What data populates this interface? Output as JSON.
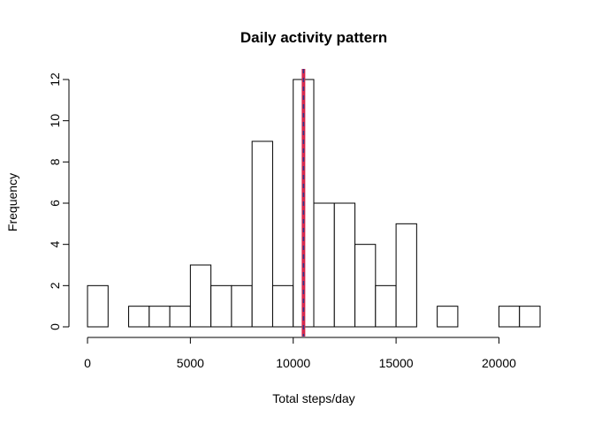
{
  "chart_data": {
    "type": "bar",
    "title": "Daily activity pattern",
    "xlabel": "Total steps/day",
    "ylabel": "Frequency",
    "bin_width": 1000,
    "bins": [
      {
        "start": 0,
        "end": 1000,
        "count": 2
      },
      {
        "start": 1000,
        "end": 2000,
        "count": 0
      },
      {
        "start": 2000,
        "end": 3000,
        "count": 1
      },
      {
        "start": 3000,
        "end": 4000,
        "count": 1
      },
      {
        "start": 4000,
        "end": 5000,
        "count": 1
      },
      {
        "start": 5000,
        "end": 6000,
        "count": 3
      },
      {
        "start": 6000,
        "end": 7000,
        "count": 2
      },
      {
        "start": 7000,
        "end": 8000,
        "count": 2
      },
      {
        "start": 8000,
        "end": 9000,
        "count": 9
      },
      {
        "start": 9000,
        "end": 10000,
        "count": 2
      },
      {
        "start": 10000,
        "end": 11000,
        "count": 12
      },
      {
        "start": 11000,
        "end": 12000,
        "count": 6
      },
      {
        "start": 12000,
        "end": 13000,
        "count": 6
      },
      {
        "start": 13000,
        "end": 14000,
        "count": 4
      },
      {
        "start": 14000,
        "end": 15000,
        "count": 2
      },
      {
        "start": 15000,
        "end": 16000,
        "count": 5
      },
      {
        "start": 16000,
        "end": 17000,
        "count": 0
      },
      {
        "start": 17000,
        "end": 18000,
        "count": 1
      },
      {
        "start": 18000,
        "end": 19000,
        "count": 0
      },
      {
        "start": 19000,
        "end": 20000,
        "count": 0
      },
      {
        "start": 20000,
        "end": 21000,
        "count": 1
      },
      {
        "start": 21000,
        "end": 22000,
        "count": 1
      }
    ],
    "xlim": [
      0,
      22000
    ],
    "ylim": [
      0,
      12
    ],
    "xticks": [
      0,
      5000,
      10000,
      15000,
      20000
    ],
    "yticks": [
      0,
      2,
      4,
      6,
      8,
      10,
      12
    ],
    "reference_line": {
      "x": 10500,
      "color": "#d6284e",
      "dash_color": "#2a3a8f"
    },
    "bar_fill": "#ffffff",
    "bar_stroke": "#000000",
    "grid": false,
    "legend": "none"
  }
}
